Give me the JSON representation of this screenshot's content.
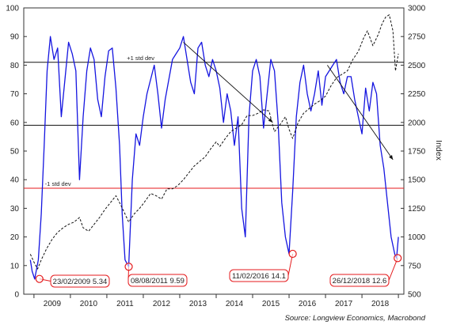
{
  "chart_data": {
    "type": "line",
    "title": "",
    "source": "Source: Longview Economics, Macrobond",
    "xlabel": "",
    "x_ticks": [
      "2009",
      "2010",
      "2011",
      "2012",
      "2013",
      "2014",
      "2015",
      "2016",
      "2017",
      "2018"
    ],
    "left_axis": {
      "label": "",
      "range": [
        0,
        100
      ],
      "ticks": [
        0,
        10,
        20,
        30,
        40,
        50,
        60,
        70,
        80,
        90,
        100
      ]
    },
    "right_axis": {
      "label": "Index",
      "range": [
        500,
        3000
      ],
      "ticks": [
        500,
        750,
        1000,
        1250,
        1500,
        1750,
        2000,
        2250,
        2500,
        2750,
        3000
      ]
    },
    "grid": false,
    "series": [
      {
        "color": "#1515e0",
        "style": "solid",
        "axis": "left",
        "x": [
          2008.9,
          2008.95,
          2009.02,
          2009.12,
          2009.2,
          2009.28,
          2009.36,
          2009.45,
          2009.55,
          2009.65,
          2009.75,
          2009.85,
          2009.95,
          2010.05,
          2010.15,
          2010.25,
          2010.35,
          2010.45,
          2010.55,
          2010.65,
          2010.75,
          2010.85,
          2010.95,
          2011.05,
          2011.15,
          2011.25,
          2011.35,
          2011.42,
          2011.5,
          2011.6,
          2011.7,
          2011.8,
          2011.9,
          2012.0,
          2012.1,
          2012.2,
          2012.3,
          2012.4,
          2012.5,
          2012.6,
          2012.7,
          2012.8,
          2012.9,
          2013.0,
          2013.1,
          2013.2,
          2013.3,
          2013.4,
          2013.5,
          2013.6,
          2013.7,
          2013.8,
          2013.9,
          2014.0,
          2014.1,
          2014.2,
          2014.3,
          2014.4,
          2014.5,
          2014.6,
          2014.7,
          2014.8,
          2014.9,
          2015.0,
          2015.1,
          2015.2,
          2015.3,
          2015.4,
          2015.5,
          2015.6,
          2015.7,
          2015.8,
          2015.9,
          2016.0,
          2016.1,
          2016.2,
          2016.3,
          2016.4,
          2016.5,
          2016.6,
          2016.7,
          2016.8,
          2016.9,
          2017.0,
          2017.1,
          2017.2,
          2017.3,
          2017.4,
          2017.5,
          2017.6,
          2017.7,
          2017.8,
          2017.9,
          2018.0,
          2018.1,
          2018.2,
          2018.3,
          2018.4,
          2018.5,
          2018.6,
          2018.7,
          2018.8,
          2018.9,
          2018.95,
          2019.0
        ],
        "y": [
          12,
          8,
          5.3,
          12,
          28,
          52,
          78,
          90,
          82,
          86,
          62,
          75,
          88,
          84,
          78,
          40,
          62,
          78,
          86,
          82,
          68,
          62,
          76,
          85,
          86,
          72,
          52,
          28,
          12,
          9.6,
          40,
          56,
          52,
          62,
          70,
          75,
          80,
          70,
          58,
          68,
          75,
          82,
          84,
          86,
          90,
          82,
          74,
          70,
          86,
          88,
          80,
          76,
          82,
          78,
          72,
          60,
          70,
          64,
          52,
          62,
          30,
          20,
          62,
          78,
          82,
          76,
          58,
          70,
          82,
          78,
          60,
          32,
          20,
          14.1,
          36,
          62,
          74,
          80,
          70,
          64,
          70,
          78,
          66,
          76,
          78,
          80,
          82,
          74,
          70,
          76,
          76,
          68,
          62,
          56,
          72,
          64,
          74,
          70,
          52,
          44,
          32,
          20,
          14,
          12.6,
          20
        ]
      },
      {
        "color": "#111111",
        "style": "dashed",
        "axis": "right",
        "x": [
          2008.9,
          2009.0,
          2009.1,
          2009.2,
          2009.35,
          2009.5,
          2009.65,
          2009.8,
          2009.95,
          2010.1,
          2010.25,
          2010.35,
          2010.5,
          2010.65,
          2010.8,
          2010.95,
          2011.1,
          2011.25,
          2011.35,
          2011.5,
          2011.6,
          2011.75,
          2011.9,
          2012.0,
          2012.2,
          2012.35,
          2012.5,
          2012.65,
          2012.8,
          2012.95,
          2013.1,
          2013.25,
          2013.4,
          2013.55,
          2013.7,
          2013.85,
          2014.0,
          2014.1,
          2014.25,
          2014.4,
          2014.55,
          2014.7,
          2014.85,
          2015.0,
          2015.15,
          2015.3,
          2015.45,
          2015.6,
          2015.75,
          2015.9,
          2016.0,
          2016.1,
          2016.25,
          2016.4,
          2016.55,
          2016.7,
          2016.85,
          2017.0,
          2017.15,
          2017.3,
          2017.45,
          2017.6,
          2017.75,
          2017.9,
          2018.05,
          2018.15,
          2018.3,
          2018.45,
          2018.55,
          2018.65,
          2018.75,
          2018.85,
          2018.92,
          2019.0
        ],
        "y": [
          850,
          780,
          720,
          800,
          900,
          980,
          1040,
          1080,
          1110,
          1130,
          1170,
          1080,
          1050,
          1110,
          1170,
          1240,
          1300,
          1360,
          1300,
          1200,
          1130,
          1200,
          1250,
          1290,
          1380,
          1360,
          1330,
          1420,
          1420,
          1450,
          1500,
          1560,
          1620,
          1660,
          1700,
          1770,
          1830,
          1790,
          1860,
          1920,
          1950,
          1980,
          2060,
          2060,
          2080,
          2110,
          2100,
          1920,
          1980,
          2050,
          1940,
          1860,
          2000,
          2080,
          2120,
          2160,
          2190,
          2230,
          2320,
          2390,
          2420,
          2450,
          2550,
          2620,
          2740,
          2800,
          2670,
          2770,
          2860,
          2920,
          2940,
          2800,
          2450,
          2600
        ]
      }
    ],
    "reference_lines": [
      {
        "value": 81,
        "color": "#111111",
        "label": "+1 std dev"
      },
      {
        "value": 59,
        "color": "#111111",
        "label": ""
      },
      {
        "value": 37,
        "color": "#e41a1c",
        "label": "-1 std dev"
      }
    ],
    "trend_lines": [
      {
        "from": [
          2013.1,
          88
        ],
        "to": [
          2015.55,
          60
        ]
      },
      {
        "from": [
          2017.05,
          80
        ],
        "to": [
          2018.85,
          47
        ]
      }
    ],
    "annotations": [
      {
        "label": "23/02/2009 5.34",
        "x": 2009.15,
        "y": 5.34
      },
      {
        "label": "08/08/2011 9.59",
        "x": 2011.6,
        "y": 9.59
      },
      {
        "label": "11/02/2016 14.1",
        "x": 2016.1,
        "y": 14.1
      },
      {
        "label": "26/12/2018 12.6",
        "x": 2018.98,
        "y": 12.6
      }
    ]
  }
}
